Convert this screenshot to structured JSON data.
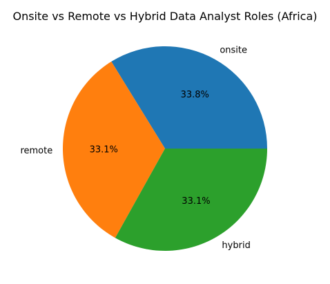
{
  "chart_data": {
    "type": "pie",
    "title": "Onsite vs Remote vs Hybrid Data Analyst Roles (Africa)",
    "slices": [
      {
        "label": "onsite",
        "value": 33.8,
        "pct_label": "33.8%",
        "color": "#1f77b4"
      },
      {
        "label": "remote",
        "value": 33.1,
        "pct_label": "33.1%",
        "color": "#ff7f0e"
      },
      {
        "label": "hybrid",
        "value": 33.1,
        "pct_label": "33.1%",
        "color": "#2ca02c"
      }
    ]
  }
}
